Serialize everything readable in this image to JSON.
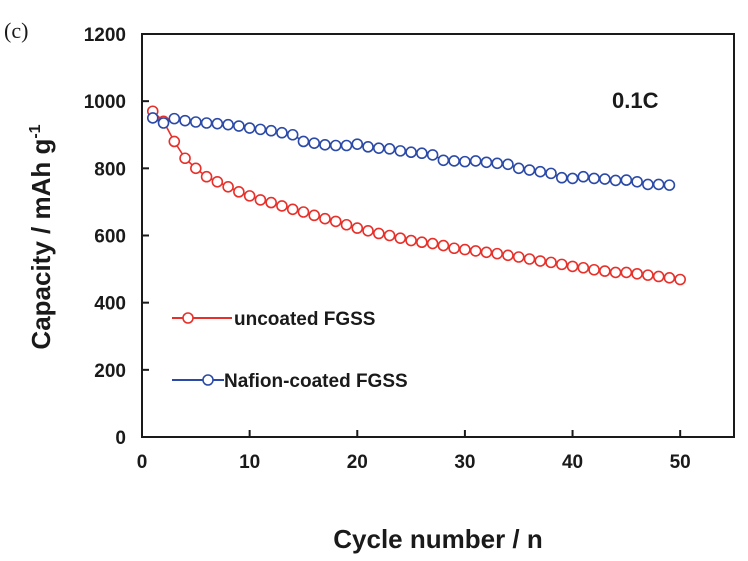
{
  "chart_data": {
    "type": "scatter",
    "panel_label": "(c)",
    "annotation": "0.1C",
    "xlabel": "Cycle number / n",
    "ylabel_main": "Capacity / mAh g",
    "ylabel_sup": "-1",
    "xlim": [
      0,
      55
    ],
    "ylim": [
      0,
      1200
    ],
    "xticks": [
      "0",
      "10",
      "20",
      "30",
      "40",
      "50"
    ],
    "yticks": [
      "0",
      "200",
      "400",
      "600",
      "800",
      "1000",
      "1200"
    ],
    "grid": false,
    "legend_placement": "lower-left",
    "series": [
      {
        "name": "uncoated FGSS",
        "color": "#e8302a",
        "marker": "open-circle",
        "x": [
          1,
          2,
          3,
          4,
          5,
          6,
          7,
          8,
          9,
          10,
          11,
          12,
          13,
          14,
          15,
          16,
          17,
          18,
          19,
          20,
          21,
          22,
          23,
          24,
          25,
          26,
          27,
          28,
          29,
          30,
          31,
          32,
          33,
          34,
          35,
          36,
          37,
          38,
          39,
          40,
          41,
          42,
          43,
          44,
          45,
          46,
          47,
          48,
          49,
          50
        ],
        "values": [
          970,
          940,
          880,
          830,
          800,
          775,
          760,
          745,
          730,
          718,
          706,
          698,
          688,
          678,
          670,
          660,
          650,
          642,
          632,
          622,
          614,
          606,
          600,
          592,
          585,
          580,
          576,
          570,
          562,
          558,
          554,
          550,
          546,
          541,
          536,
          530,
          524,
          520,
          514,
          508,
          504,
          498,
          494,
          490,
          490,
          486,
          482,
          478,
          474,
          469
        ]
      },
      {
        "name": "Nafion-coated FGSS",
        "color": "#2b4aa8",
        "marker": "open-circle",
        "x": [
          1,
          2,
          3,
          4,
          5,
          6,
          7,
          8,
          9,
          10,
          11,
          12,
          13,
          14,
          15,
          16,
          17,
          18,
          19,
          20,
          21,
          22,
          23,
          24,
          25,
          26,
          27,
          28,
          29,
          30,
          31,
          32,
          33,
          34,
          35,
          36,
          37,
          38,
          39,
          40,
          41,
          42,
          43,
          44,
          45,
          46,
          47,
          48,
          49
        ],
        "values": [
          950,
          935,
          948,
          942,
          938,
          935,
          933,
          930,
          926,
          920,
          916,
          912,
          906,
          900,
          880,
          875,
          870,
          868,
          868,
          872,
          864,
          860,
          858,
          852,
          848,
          845,
          840,
          824,
          822,
          820,
          822,
          818,
          815,
          812,
          800,
          795,
          790,
          785,
          772,
          770,
          775,
          770,
          768,
          764,
          765,
          760,
          752,
          752,
          750
        ]
      }
    ]
  }
}
